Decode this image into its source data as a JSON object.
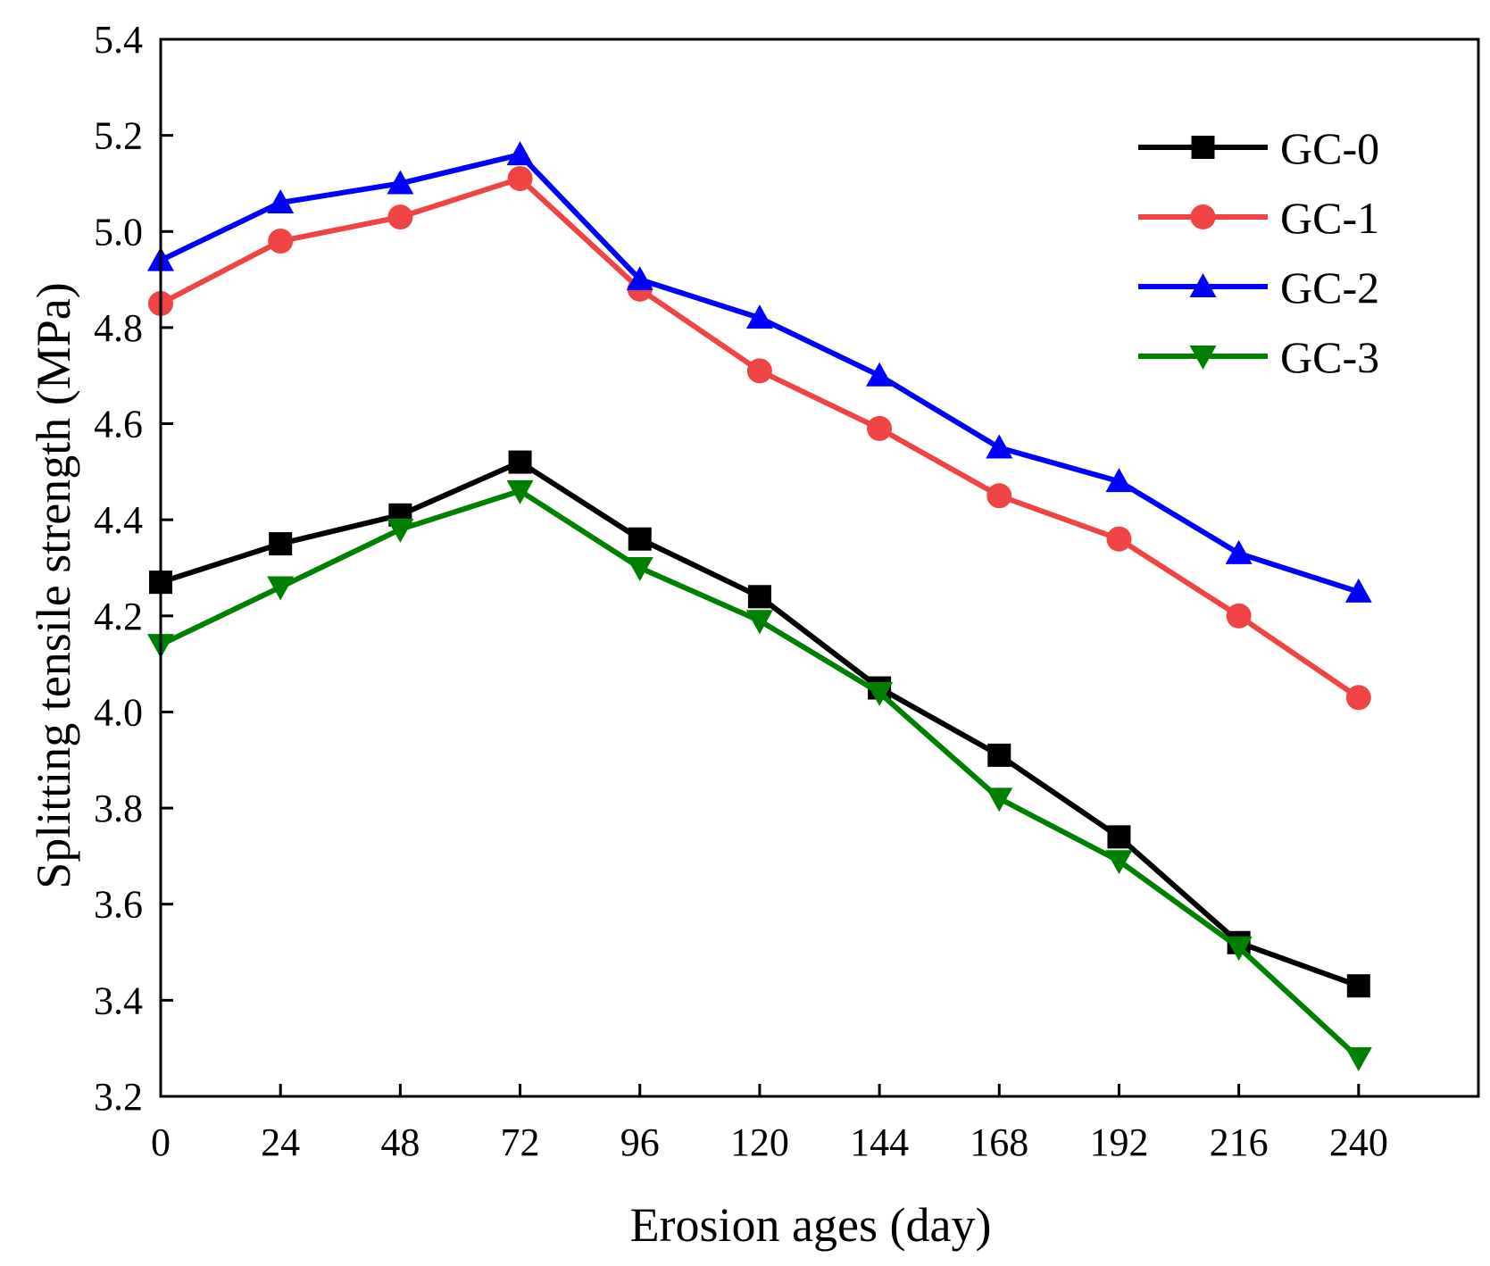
{
  "chart_data": {
    "type": "line",
    "title": "",
    "xlabel": "Erosion ages (day)",
    "ylabel": "Splitting tensile strength (MPa)",
    "x": [
      0,
      24,
      48,
      72,
      96,
      120,
      144,
      168,
      192,
      216,
      240
    ],
    "xlim": [
      0,
      264
    ],
    "ylim": [
      3.2,
      5.4
    ],
    "xticks": [
      0,
      24,
      48,
      72,
      96,
      120,
      144,
      168,
      192,
      216,
      240
    ],
    "yticks": [
      3.2,
      3.4,
      3.6,
      3.8,
      4.0,
      4.2,
      4.4,
      4.6,
      4.8,
      5.0,
      5.2,
      5.4
    ],
    "xtick_labels": [
      "0",
      "24",
      "48",
      "72",
      "96",
      "120",
      "144",
      "168",
      "192",
      "216",
      "240"
    ],
    "ytick_labels": [
      "3.2",
      "3.4",
      "3.6",
      "3.8",
      "4.0",
      "4.2",
      "4.4",
      "4.6",
      "4.8",
      "5.0",
      "5.2",
      "5.4"
    ],
    "grid": false,
    "legend_position": "top-right",
    "series": [
      {
        "name": "GC-0",
        "color": "#000000",
        "marker": "square",
        "values": [
          4.27,
          4.35,
          4.41,
          4.52,
          4.36,
          4.24,
          4.05,
          3.91,
          3.74,
          3.52,
          3.43
        ]
      },
      {
        "name": "GC-1",
        "color": "#ef4444",
        "marker": "circle",
        "values": [
          4.85,
          4.98,
          5.03,
          5.11,
          4.88,
          4.71,
          4.59,
          4.45,
          4.36,
          4.2,
          4.03
        ]
      },
      {
        "name": "GC-2",
        "color": "#0000ff",
        "marker": "triangle-up",
        "values": [
          4.94,
          5.06,
          5.1,
          5.16,
          4.9,
          4.82,
          4.7,
          4.55,
          4.48,
          4.33,
          4.25
        ]
      },
      {
        "name": "GC-3",
        "color": "#008000",
        "marker": "triangle-down",
        "values": [
          4.14,
          4.26,
          4.38,
          4.46,
          4.3,
          4.19,
          4.04,
          3.82,
          3.69,
          3.51,
          3.28
        ]
      }
    ]
  }
}
